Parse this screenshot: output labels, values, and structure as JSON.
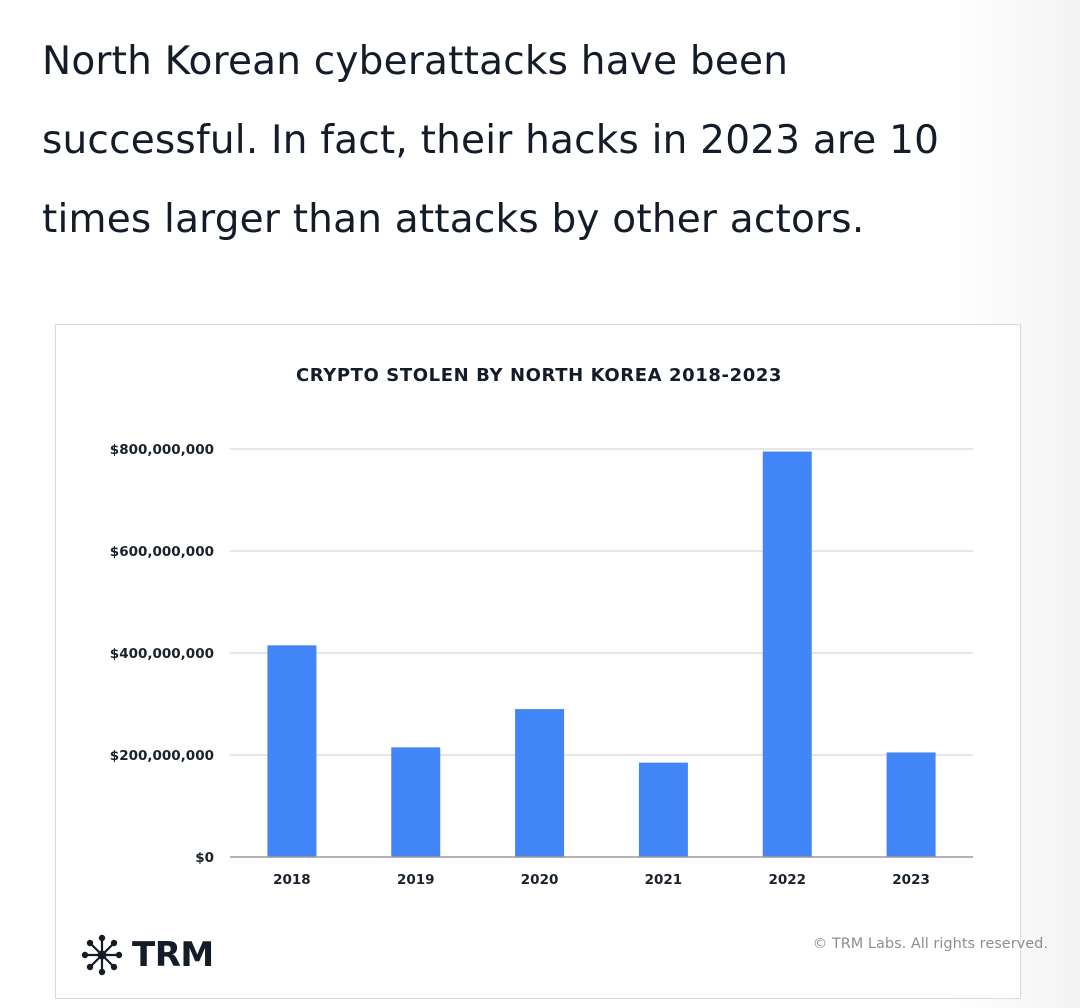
{
  "headline": "North Korean cyberattacks have been successful. In fact, their hacks in 2023 are 10 times larger than attacks by other actors.",
  "headline_lines": [
    "North Korean cyberattacks have been",
    "successful. In fact, their hacks in 2023 are 10",
    "times larger than attacks by other actors."
  ],
  "brand": {
    "logo_text": "TRM",
    "logo_icon": "network-node-icon",
    "copyright": "© TRM Labs. All rights reserved."
  },
  "colors": {
    "bar": "#4285f8",
    "grid": "#d6d6d6",
    "axis": "#9a9a9a",
    "text": "#131c28"
  },
  "chart_data": {
    "type": "bar",
    "title": "CRYPTO STOLEN BY NORTH KOREA 2018-2023",
    "xlabel": "",
    "ylabel": "",
    "categories": [
      "2018",
      "2019",
      "2020",
      "2021",
      "2022",
      "2023"
    ],
    "values": [
      415000000,
      215000000,
      290000000,
      185000000,
      795000000,
      205000000
    ],
    "ylim": [
      0,
      800000000
    ],
    "yticks": [
      0,
      200000000,
      400000000,
      600000000,
      800000000
    ],
    "ytick_labels": [
      "$0",
      "$200,000,000",
      "$400,000,000",
      "$600,000,000",
      "$800,000,000"
    ],
    "grid": true,
    "legend": "none"
  }
}
